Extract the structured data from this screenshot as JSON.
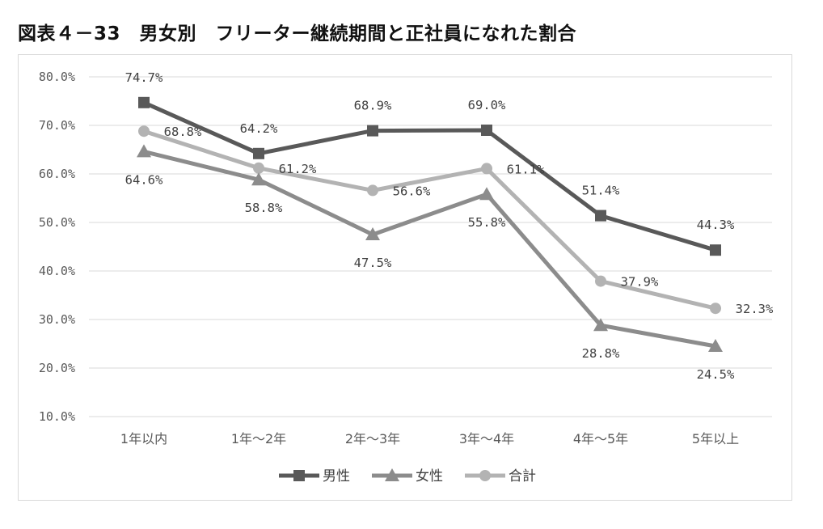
{
  "figure_title": "図表４－33　男女別　フリーター継続期間と正社員になれた割合",
  "chart_data": {
    "type": "line",
    "categories": [
      "1年以内",
      "1年～2年",
      "2年～3年",
      "3年～4年",
      "4年～5年",
      "5年以上"
    ],
    "series": [
      {
        "name": "男性",
        "values": [
          74.7,
          64.2,
          68.9,
          69.0,
          51.4,
          44.3
        ],
        "color": "#595959",
        "marker": "square",
        "labels": [
          "74.7%",
          "64.2%",
          "68.9%",
          "69.0%",
          "51.4%",
          "44.3%"
        ]
      },
      {
        "name": "女性",
        "values": [
          64.6,
          58.8,
          47.5,
          55.8,
          28.8,
          24.5
        ],
        "color": "#8c8c8c",
        "marker": "triangle",
        "labels": [
          "64.6%",
          "58.8%",
          "47.5%",
          "55.8%",
          "28.8%",
          "24.5%"
        ]
      },
      {
        "name": "合計",
        "values": [
          68.8,
          61.2,
          56.6,
          61.1,
          37.9,
          32.3
        ],
        "color": "#b3b3b3",
        "marker": "circle",
        "labels": [
          "68.8%",
          "61.2%",
          "56.6%",
          "61.1%",
          "37.9%",
          "32.3%"
        ]
      }
    ],
    "y_ticks": [
      "80.0%",
      "70.0%",
      "60.0%",
      "50.0%",
      "40.0%",
      "30.0%",
      "20.0%",
      "10.0%"
    ],
    "ylim": [
      10,
      80
    ],
    "grid": true,
    "legend_position": "bottom"
  }
}
